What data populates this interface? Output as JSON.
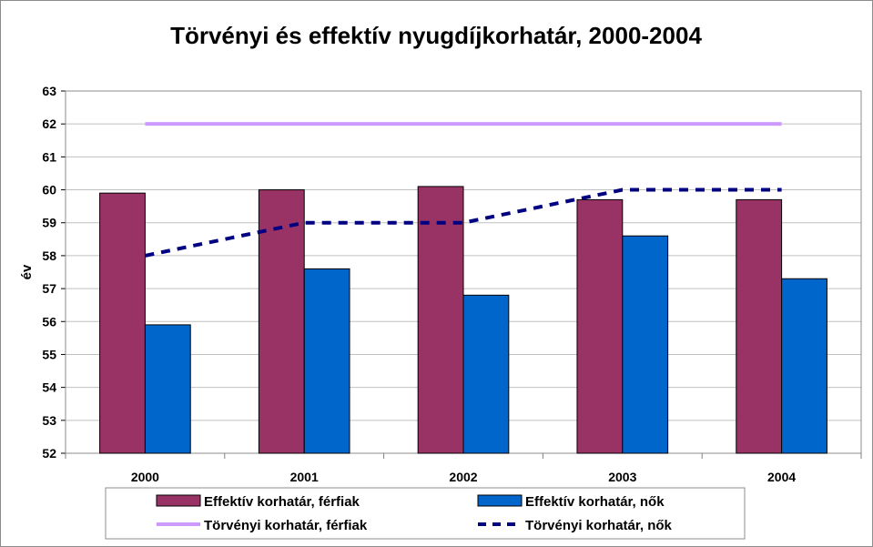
{
  "chart_data": {
    "type": "bar",
    "title": "Törvényi és effektív nyugdíjkorhatár, 2000-2004",
    "ylabel": "év",
    "xlabel": "",
    "ylim": [
      52,
      63
    ],
    "yticks": [
      "52",
      "53",
      "54",
      "55",
      "56",
      "57",
      "58",
      "59",
      "60",
      "61",
      "62",
      "63"
    ],
    "categories": [
      "2000",
      "2001",
      "2002",
      "2003",
      "2004"
    ],
    "grid": true,
    "legend_position": "bottom",
    "series": [
      {
        "name": "Effektív korhatár, férfiak",
        "kind": "bar",
        "color": "#993366",
        "values": [
          59.9,
          60.0,
          60.1,
          59.7,
          59.7
        ]
      },
      {
        "name": "Effektív korhatár, nők",
        "kind": "bar",
        "color": "#0066cc",
        "values": [
          55.9,
          57.6,
          56.8,
          58.6,
          57.3
        ]
      },
      {
        "name": "Törvényi korhatár, férfiak",
        "kind": "line",
        "style": "solid",
        "color": "#cc99ff",
        "values": [
          62,
          62,
          62,
          62,
          62
        ]
      },
      {
        "name": "Törvényi korhatár, nők",
        "kind": "line",
        "style": "dashed",
        "color": "#000080",
        "values": [
          58,
          59,
          59,
          60,
          60
        ]
      }
    ]
  }
}
